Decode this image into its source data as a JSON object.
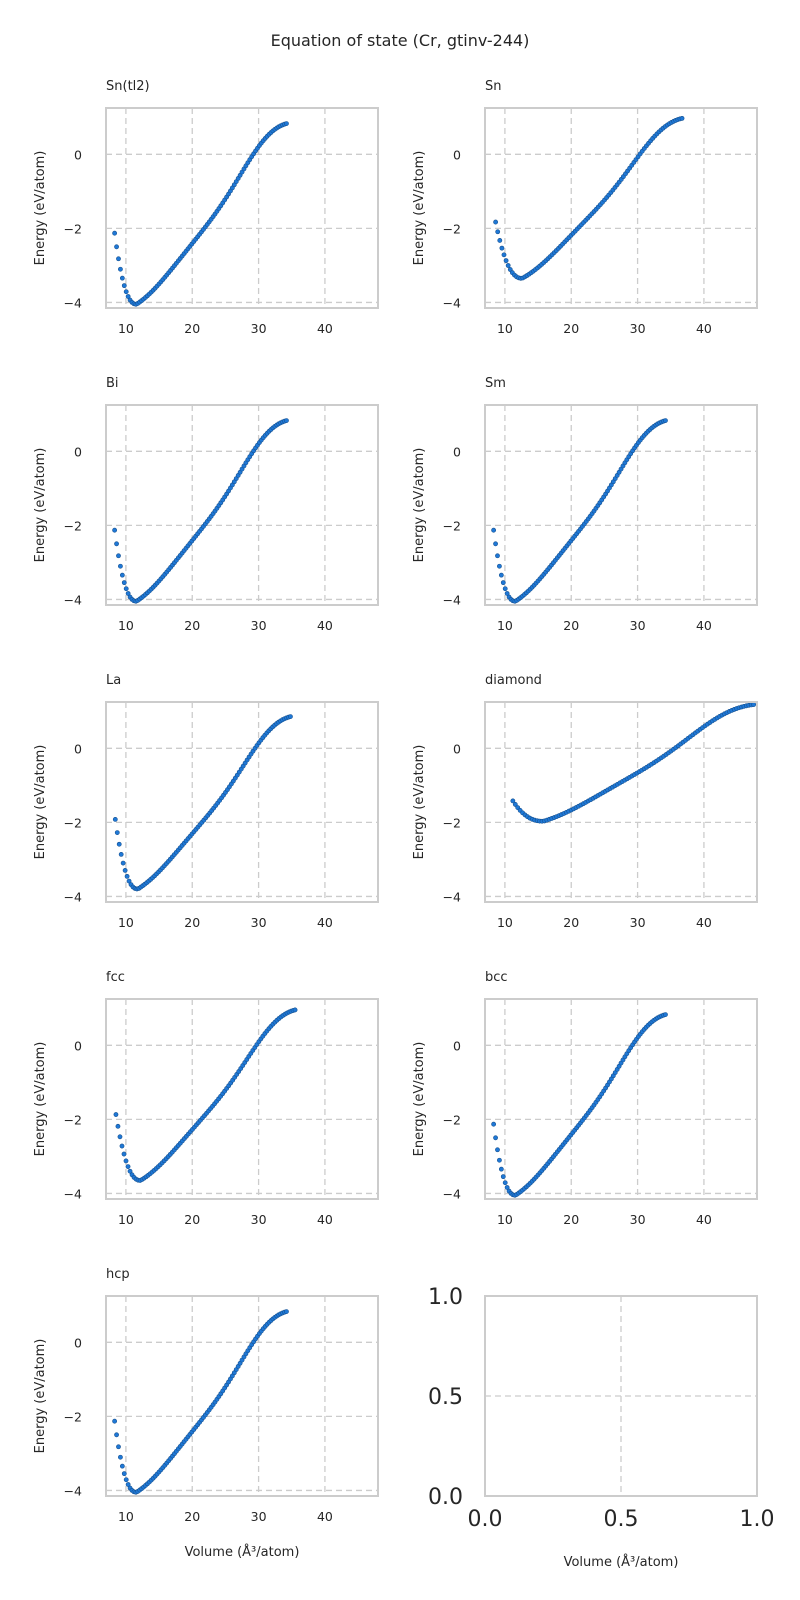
{
  "figure_title": "Equation of state (Cr, gtinv-244)",
  "chart_data": [
    {
      "type": "scatter",
      "title": "Sn(tl2)",
      "ylabel": "Energy (eV/atom)",
      "xlabel": "",
      "xlim": [
        7,
        48
      ],
      "ylim": [
        -4.15,
        1.25
      ],
      "xticks": [
        "10",
        "20",
        "30",
        "40"
      ],
      "yticks": [
        "-4",
        "-2",
        "0"
      ],
      "color": "#1f78d6",
      "curve": {
        "v0": 11.6,
        "e0": -4.05,
        "vmin": 8.3,
        "vmax": 34.2,
        "emin_at_vmin": -2.13,
        "e_at_vmax": 0.75,
        "n": 90
      }
    },
    {
      "type": "scatter",
      "title": "Sn",
      "ylabel": "Energy (eV/atom)",
      "xlabel": "",
      "xlim": [
        7,
        48
      ],
      "ylim": [
        -4.15,
        1.25
      ],
      "xticks": [
        "10",
        "20",
        "30",
        "40"
      ],
      "yticks": [
        "-4",
        "-2",
        "0"
      ],
      "color": "#1f78d6",
      "curve": {
        "v0": 12.6,
        "e0": -3.35,
        "vmin": 8.6,
        "vmax": 36.7,
        "emin_at_vmin": -1.83,
        "e_at_vmax": 0.9,
        "n": 90
      }
    },
    {
      "type": "scatter",
      "title": "Bi",
      "ylabel": "Energy (eV/atom)",
      "xlabel": "",
      "xlim": [
        7,
        48
      ],
      "ylim": [
        -4.15,
        1.25
      ],
      "xticks": [
        "10",
        "20",
        "30",
        "40"
      ],
      "yticks": [
        "-4",
        "-2",
        "0"
      ],
      "color": "#1f78d6",
      "curve": {
        "v0": 11.6,
        "e0": -4.05,
        "vmin": 8.3,
        "vmax": 34.2,
        "emin_at_vmin": -2.13,
        "e_at_vmax": 0.75,
        "n": 90
      }
    },
    {
      "type": "scatter",
      "title": "Sm",
      "ylabel": "Energy (eV/atom)",
      "xlabel": "",
      "xlim": [
        7,
        48
      ],
      "ylim": [
        -4.15,
        1.25
      ],
      "xticks": [
        "10",
        "20",
        "30",
        "40"
      ],
      "yticks": [
        "-4",
        "-2",
        "0"
      ],
      "color": "#1f78d6",
      "curve": {
        "v0": 11.6,
        "e0": -4.05,
        "vmin": 8.3,
        "vmax": 34.2,
        "emin_at_vmin": -2.13,
        "e_at_vmax": 0.75,
        "n": 90
      }
    },
    {
      "type": "scatter",
      "title": "La",
      "ylabel": "Energy (eV/atom)",
      "xlabel": "",
      "xlim": [
        7,
        48
      ],
      "ylim": [
        -4.15,
        1.25
      ],
      "xticks": [
        "10",
        "20",
        "30",
        "40"
      ],
      "yticks": [
        "-4",
        "-2",
        "0"
      ],
      "color": "#1f78d6",
      "curve": {
        "v0": 11.8,
        "e0": -3.8,
        "vmin": 8.4,
        "vmax": 34.8,
        "emin_at_vmin": -1.92,
        "e_at_vmax": 0.78,
        "n": 90
      }
    },
    {
      "type": "scatter",
      "title": "diamond",
      "ylabel": "Energy (eV/atom)",
      "xlabel": "",
      "xlim": [
        7,
        48
      ],
      "ylim": [
        -4.15,
        1.25
      ],
      "xticks": [
        "10",
        "20",
        "30",
        "40"
      ],
      "yticks": [
        "-4",
        "-2",
        "0"
      ],
      "color": "#1f78d6",
      "curve": {
        "v0": 15.8,
        "e0": -1.97,
        "vmin": 11.2,
        "vmax": 47.5,
        "emin_at_vmin": -1.42,
        "e_at_vmax": 1.13,
        "n": 100
      }
    },
    {
      "type": "scatter",
      "title": "fcc",
      "ylabel": "Energy (eV/atom)",
      "xlabel": "",
      "xlim": [
        7,
        48
      ],
      "ylim": [
        -4.15,
        1.25
      ],
      "xticks": [
        "10",
        "20",
        "30",
        "40"
      ],
      "yticks": [
        "-4",
        "-2",
        "0"
      ],
      "color": "#1f78d6",
      "curve": {
        "v0": 12.2,
        "e0": -3.65,
        "vmin": 8.5,
        "vmax": 35.5,
        "emin_at_vmin": -1.87,
        "e_at_vmax": 0.88,
        "n": 90
      }
    },
    {
      "type": "scatter",
      "title": "bcc",
      "ylabel": "Energy (eV/atom)",
      "xlabel": "",
      "xlim": [
        7,
        48
      ],
      "ylim": [
        -4.15,
        1.25
      ],
      "xticks": [
        "10",
        "20",
        "30",
        "40"
      ],
      "yticks": [
        "-4",
        "-2",
        "0"
      ],
      "color": "#1f78d6",
      "curve": {
        "v0": 11.6,
        "e0": -4.05,
        "vmin": 8.3,
        "vmax": 34.2,
        "emin_at_vmin": -2.13,
        "e_at_vmax": 0.75,
        "n": 90
      }
    },
    {
      "type": "scatter",
      "title": "hcp",
      "ylabel": "Energy (eV/atom)",
      "xlabel": "Volume (Å³/atom)",
      "xlim": [
        7,
        48
      ],
      "ylim": [
        -4.15,
        1.25
      ],
      "xticks": [
        "10",
        "20",
        "30",
        "40"
      ],
      "yticks": [
        "-4",
        "-2",
        "0"
      ],
      "color": "#1f78d6",
      "curve": {
        "v0": 11.6,
        "e0": -4.05,
        "vmin": 8.3,
        "vmax": 34.2,
        "emin_at_vmin": -2.13,
        "e_at_vmax": 0.75,
        "n": 90
      }
    },
    {
      "type": "scatter",
      "title": "",
      "ylabel": "",
      "xlabel": "Volume (Å³/atom)",
      "xlim": [
        0,
        1
      ],
      "ylim": [
        0,
        1
      ],
      "xticks": [
        "0.0",
        "0.5",
        "1.0"
      ],
      "yticks": [
        "0.0",
        "0.5",
        "1.0"
      ],
      "empty": true
    }
  ]
}
